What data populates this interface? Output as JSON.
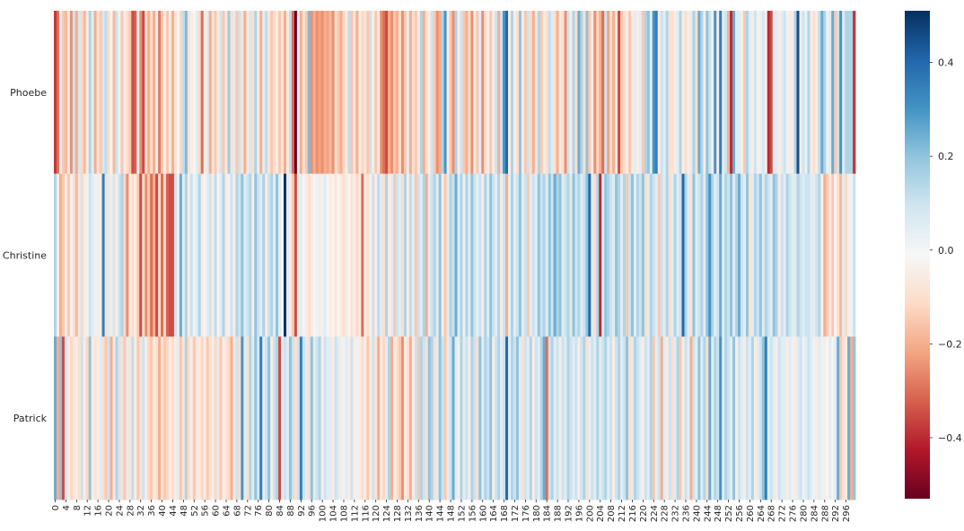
{
  "chart_data": {
    "type": "heatmap",
    "title": "",
    "xlabel": "",
    "ylabel": "",
    "rows": [
      "Phoebe",
      "Christine",
      "Patrick"
    ],
    "n_columns": 300,
    "x_tick_labels": [
      "0",
      "4",
      "8",
      "12",
      "16",
      "20",
      "24",
      "28",
      "32",
      "36",
      "40",
      "44",
      "48",
      "52",
      "56",
      "60",
      "64",
      "68",
      "72",
      "76",
      "80",
      "84",
      "88",
      "92",
      "96",
      "100",
      "104",
      "108",
      "112",
      "116",
      "120",
      "124",
      "128",
      "132",
      "136",
      "140",
      "144",
      "148",
      "152",
      "156",
      "160",
      "164",
      "168",
      "172",
      "176",
      "180",
      "184",
      "188",
      "192",
      "196",
      "200",
      "204",
      "208",
      "212",
      "216",
      "220",
      "224",
      "228",
      "232",
      "236",
      "240",
      "244",
      "248",
      "252",
      "256",
      "260",
      "264",
      "268",
      "272",
      "276",
      "280",
      "284",
      "288",
      "292",
      "296"
    ],
    "x_tick_step": 4,
    "values": [
      [
        -0.38,
        -0.3,
        0.05,
        -0.15,
        -0.18,
        -0.05,
        -0.25,
        0.1,
        -0.2,
        0.08,
        -0.12,
        -0.18,
        -0.05,
        0.15,
        0.05,
        -0.2,
        -0.08,
        -0.15,
        0.08,
        0.12,
        -0.1,
        -0.02,
        -0.18,
        0.1,
        0.02,
        -0.15,
        -0.05,
        -0.1,
        -0.15,
        -0.35,
        -0.32,
        0.05,
        -0.25,
        -0.35,
        -0.1,
        -0.2,
        -0.1,
        -0.2,
        0.05,
        -0.28,
        -0.15,
        -0.05,
        -0.15,
        -0.05,
        -0.2,
        -0.08,
        -0.02,
        -0.12,
        0.12,
        0.22,
        -0.08,
        -0.05,
        -0.02,
        0.05,
        -0.12,
        -0.3,
        -0.05,
        0.05,
        -0.2,
        -0.08,
        -0.15,
        -0.05,
        0.1,
        -0.15,
        -0.05,
        0.18,
        -0.1,
        0.05,
        -0.15,
        0.1,
        -0.08,
        -0.2,
        -0.05,
        0.08,
        -0.1,
        0.15,
        -0.05,
        -0.2,
        0.05,
        0.12,
        -0.08,
        -0.15,
        -0.1,
        -0.05,
        -0.15,
        -0.08,
        -0.2,
        -0.05,
        0.12,
        -0.3,
        -0.55,
        0.05,
        -0.2,
        -0.08,
        -0.15,
        0.22,
        -0.25,
        -0.2,
        -0.25,
        -0.22,
        -0.25,
        -0.2,
        -0.22,
        -0.18,
        -0.25,
        -0.1,
        -0.15,
        -0.2,
        -0.12,
        -0.05,
        0.12,
        -0.15,
        -0.08,
        -0.2,
        -0.05,
        -0.12,
        -0.08,
        -0.15,
        0.1,
        -0.05,
        -0.15,
        -0.05,
        -0.25,
        -0.3,
        -0.35,
        -0.2,
        -0.25,
        -0.15,
        -0.2,
        -0.1,
        -0.25,
        -0.15,
        0.05,
        -0.2,
        -0.1,
        -0.15,
        -0.05,
        0.15,
        -0.2,
        -0.1,
        -0.05,
        0.1,
        -0.15,
        -0.25,
        -0.2,
        0.15,
        0.3,
        -0.05,
        -0.15,
        -0.25,
        0.15,
        -0.05,
        0.1,
        -0.15,
        -0.2,
        -0.1,
        -0.25,
        -0.05,
        -0.15,
        0.05,
        -0.25,
        -0.1,
        -0.05,
        -0.15,
        -0.05,
        0.1,
        -0.2,
        0.1,
        0.3,
        0.4,
        -0.05,
        0.15,
        -0.05,
        -0.1,
        0.2,
        -0.05,
        -0.15,
        0.1,
        -0.1,
        -0.2,
        -0.05,
        0.15,
        -0.15,
        -0.05,
        -0.1,
        0.12,
        0.05,
        -0.1,
        -0.2,
        -0.05,
        -0.1,
        -0.25,
        0.1,
        -0.05,
        0.15,
        -0.1,
        0.25,
        0.15,
        -0.1,
        0.2,
        -0.15,
        -0.05,
        -0.25,
        -0.12,
        -0.2,
        -0.3,
        0.1,
        -0.22,
        -0.1,
        -0.2,
        -0.05,
        -0.35,
        -0.15,
        -0.1,
        -0.05,
        -0.15,
        -0.05,
        0.05,
        -0.05,
        0.05,
        -0.15,
        0.15,
        0.2,
        0.05,
        0.3,
        0.35,
        -0.05,
        0.1,
        0.05,
        0.15,
        -0.1,
        -0.1,
        -0.05,
        0.05,
        0.15,
        -0.05,
        -0.1,
        -0.05,
        0.05,
        0.15,
        -0.1,
        0.25,
        0.15,
        -0.05,
        0.2,
        0.1,
        -0.05,
        0.3,
        -0.05,
        0.35,
        0.05,
        0.1,
        -0.2,
        -0.4,
        0.25,
        0.05,
        0.05,
        -0.05,
        -0.15,
        0.15,
        0.05,
        -0.05,
        0.1,
        0.02,
        -0.05,
        0.08,
        -0.05,
        -0.4,
        -0.35,
        0.05,
        0.05,
        -0.05,
        0.05,
        0.1,
        0.02,
        -0.05,
        -0.05,
        0.15,
        0.45,
        -0.05,
        0.1,
        0.02,
        0.15,
        -0.05,
        -0.1,
        -0.05,
        0.12,
        0.25,
        0.15,
        0.02,
        0.05,
        0.25,
        -0.15,
        0.1,
        0.3,
        0.05,
        0.15,
        0.15,
        0.15
      ],
      [
        0.15,
        -0.05,
        -0.2,
        -0.15,
        -0.05,
        -0.15,
        -0.02,
        -0.1,
        -0.18,
        0.05,
        -0.12,
        -0.05,
        0.02,
        0.1,
        0.05,
        0.02,
        -0.05,
        0.02,
        0.35,
        -0.1,
        0.05,
        -0.05,
        0.08,
        -0.05,
        0.1,
        0.15,
        -0.12,
        -0.25,
        -0.05,
        -0.1,
        -0.05,
        -0.15,
        -0.35,
        -0.1,
        -0.25,
        -0.15,
        -0.3,
        -0.2,
        -0.35,
        -0.1,
        -0.3,
        -0.12,
        -0.32,
        -0.35,
        -0.35,
        0.1,
        -0.05,
        0.25,
        0.05,
        0.15,
        -0.05,
        0.1,
        0.02,
        0.05,
        0.15,
        -0.05,
        -0.02,
        0.05,
        0.1,
        -0.05,
        0.12,
        -0.02,
        0.05,
        0.15,
        -0.05,
        0.02,
        0.1,
        -0.05,
        0.15,
        0.1,
        0.2,
        0.05,
        0.1,
        0.15,
        -0.05,
        0.2,
        0.1,
        0.05,
        0.15,
        -0.05,
        0.1,
        0.15,
        0.05,
        0.2,
        0.05,
        -0.02,
        0.55,
        0.05,
        -0.05,
        -0.15,
        -0.35,
        -0.05,
        0.05,
        -0.02,
        -0.05,
        -0.1,
        -0.05,
        -0.02,
        0.02,
        -0.05,
        0.02,
        0.05,
        -0.02,
        -0.05,
        -0.02,
        -0.08,
        -0.02,
        -0.05,
        -0.1,
        -0.05,
        -0.02,
        -0.08,
        -0.05,
        -0.12,
        -0.05,
        -0.3,
        -0.05,
        -0.1,
        0.02,
        0.1,
        -0.05,
        0.12,
        0.05,
        -0.1,
        0.15,
        -0.05,
        0.05,
        -0.15,
        0.1,
        0.05,
        -0.1,
        0.15,
        -0.05,
        0.12,
        0.05,
        -0.15,
        0.1,
        0.05,
        0.15,
        -0.2,
        0.05,
        0.1,
        0.15,
        0.05,
        0.2,
        -0.05,
        -0.15,
        0.05,
        0.15,
        0.1,
        0.25,
        0.05,
        0.15,
        0.02,
        0.15,
        0.05,
        0.2,
        0.1,
        0.05,
        0.1,
        -0.05,
        0.15,
        0.05,
        0.2,
        0.1,
        0.05,
        0.15,
        -0.05,
        0.1,
        -0.2,
        0.05,
        0.15,
        0.05,
        0.1,
        0.2,
        0.05,
        0.1,
        -0.15,
        0.05,
        0.1,
        0.05,
        0.2,
        0.1,
        0.15,
        0.05,
        0.2,
        0.1,
        0.25,
        0.15,
        0.2,
        0.05,
        0.1,
        0.15,
        0.05,
        0.2,
        0.1,
        0.15,
        0.05,
        0.1,
        0.2,
        0.4,
        0.05,
        -0.1,
        0.15,
        -0.4,
        0.05,
        0.2,
        0.15,
        0.1,
        0.05,
        0.2,
        0.15,
        0.05,
        0.15,
        -0.15,
        0.1,
        0.2,
        0.05,
        0.15,
        0.1,
        0.2,
        -0.1,
        0.05,
        0.15,
        0.1,
        0.05,
        -0.15,
        0.1,
        0.05,
        0.15,
        -0.1,
        0.05,
        0.15,
        0.05,
        0.1,
        0.4,
        0.15,
        0.05,
        -0.1,
        0.2,
        0.05,
        0.1,
        0.15,
        0.05,
        0.2,
        0.3,
        0.15,
        0.05,
        0.1,
        0.25,
        0.05,
        0.15,
        0.1,
        0.2,
        0.05,
        0.15,
        0.25,
        0.1,
        0.05,
        0.2,
        -0.1,
        0.05,
        0.15,
        0.1,
        0.2,
        0.05,
        0.15,
        0.1,
        0.05,
        0.2,
        0.15,
        -0.05,
        0.1,
        0.05,
        0.15,
        0.1,
        0.05,
        0.05,
        0.15,
        0.1,
        0.05,
        0.1,
        0.1,
        0.05,
        0.05,
        0.1
      ],
      [
        0.25,
        -0.2,
        0.2,
        -0.35,
        0.1,
        -0.05,
        -0.12,
        -0.08,
        -0.05,
        -0.1,
        0.1,
        -0.05,
        -0.12,
        0.2,
        -0.05,
        -0.08,
        -0.05,
        0.05,
        -0.1,
        -0.15,
        0.1,
        -0.2,
        -0.05,
        0.15,
        0.08,
        -0.1,
        -0.15,
        0.05,
        -0.08,
        0.12,
        -0.05,
        -0.15,
        -0.08,
        0.1,
        -0.05,
        -0.12,
        -0.15,
        -0.05,
        -0.1,
        -0.2,
        -0.08,
        -0.15,
        -0.12,
        -0.05,
        -0.1,
        -0.05,
        0.05,
        -0.15,
        -0.08,
        0.15,
        -0.1,
        -0.05,
        -0.15,
        -0.08,
        -0.05,
        -0.12,
        -0.05,
        -0.15,
        -0.08,
        -0.05,
        -0.12,
        0.05,
        -0.15,
        -0.05,
        -0.08,
        -0.12,
        -0.2,
        -0.05,
        0.1,
        -0.1,
        0.3,
        0.05,
        -0.1,
        0.15,
        0.05,
        0.2,
        0.08,
        0.35,
        0.05,
        0.1,
        0.2,
        -0.05,
        0.1,
        0.15,
        -0.35,
        0.05,
        0.1,
        0.05,
        0.2,
        0.1,
        -0.1,
        0.1,
        0.35,
        0.1,
        0.05,
        -0.1,
        0.2,
        0.05,
        0.1,
        0.15,
        -0.05,
        0.1,
        0.05,
        0.05,
        -0.05,
        0.1,
        0.05,
        -0.05,
        0.02,
        0.05,
        -0.05,
        0.1,
        -0.05,
        0.02,
        -0.05,
        -0.1,
        -0.05,
        -0.15,
        -0.05,
        0.1,
        -0.08,
        -0.2,
        -0.05,
        -0.12,
        0.05,
        0.15,
        -0.2,
        -0.05,
        -0.1,
        -0.15,
        -0.25,
        -0.05,
        -0.1,
        -0.2,
        -0.05,
        0.1,
        -0.15,
        0.15,
        0.1,
        -0.1,
        0.2,
        0.15,
        -0.1,
        0.05,
        0.2,
        0.1,
        -0.15,
        0.05,
        0.1,
        0.25,
        0.05,
        -0.05,
        0.15,
        0.05,
        0.1,
        -0.05,
        0.15,
        0.1,
        -0.1,
        0.2,
        0.05,
        0.15,
        0.1,
        0.2,
        -0.05,
        0.1,
        0.15,
        0.05,
        0.1,
        0.4,
        0.05,
        0.15,
        0.1,
        0.2,
        0.05,
        -0.1,
        0.1,
        0.05,
        0.15,
        -0.05,
        0.1,
        0.05,
        0.15,
        0.25,
        -0.3,
        0.1,
        0.15,
        0.05,
        0.1,
        -0.05,
        0.1,
        0.05,
        0.15,
        0.1,
        0.05,
        0.1,
        -0.05,
        0.1,
        0.15,
        -0.1,
        0.05,
        0.1,
        0.05,
        0.15,
        0.05,
        0.1,
        0.15,
        0.05,
        0.1,
        -0.05,
        0.1,
        0.15,
        0.05,
        0.1,
        0.2,
        -0.1,
        0.05,
        0.15,
        0.1,
        0.05,
        -0.05,
        0.1,
        0.05,
        0.15,
        -0.15,
        0.05,
        0.1,
        -0.2,
        0.05,
        -0.05,
        0.1,
        -0.1,
        0.05,
        0.15,
        -0.15,
        -0.05,
        0.1,
        0.05,
        -0.2,
        0.1,
        0.05,
        0.2,
        0.05,
        0.15,
        -0.1,
        0.25,
        0.05,
        0.15,
        0.1,
        0.3,
        0.05,
        0.15,
        0.1,
        0.05,
        0.2,
        -0.05,
        0.1,
        0.05,
        -0.05,
        0.1,
        0.05,
        0.15,
        -0.05,
        0.05,
        0.1,
        0.2,
        0.35,
        0.05,
        0.1,
        0.05,
        -0.05,
        0.1,
        0.05,
        0.05,
        -0.05,
        0.05,
        0.02,
        -0.05,
        0.05,
        0.1,
        0.02,
        0.05,
        0.1,
        0.05,
        0.02,
        -0.05,
        0.05,
        0.02,
        -0.05,
        -0.02,
        0.05,
        -0.02,
        0.05,
        0.25,
        -0.15,
        -0.1,
        -0.05
      ]
    ],
    "colorbar": {
      "colormap": "RdBu",
      "vmin": -0.53,
      "vmax": 0.51,
      "ticks": [
        0.4,
        0.2,
        0.0,
        -0.2,
        -0.4
      ],
      "tick_labels": [
        "0.4",
        "0.2",
        "0.0",
        "−0.2",
        "−0.4"
      ]
    },
    "grid": false,
    "legend": "colorbar-right"
  }
}
